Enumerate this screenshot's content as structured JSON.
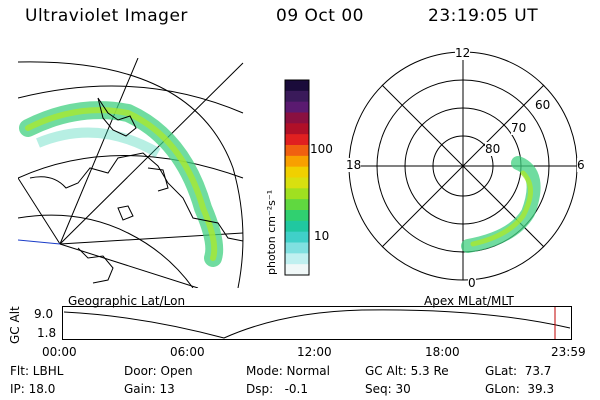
{
  "header": {
    "instrument": "Ultraviolet Imager",
    "date": "09 Oct 00",
    "time": "23:19:05 UT"
  },
  "colorbar": {
    "unit_label": "photon cm⁻²s⁻¹",
    "tick_labels": [
      "100",
      "10"
    ],
    "colors": [
      "#1a0b3a",
      "#3a1a5a",
      "#5a1a70",
      "#8a1040",
      "#b01028",
      "#e02020",
      "#f06010",
      "#f8a000",
      "#f0d000",
      "#d8e010",
      "#a0e020",
      "#60d840",
      "#30d070",
      "#20c8a0",
      "#40d0c8",
      "#80e0e0",
      "#c0f0f0",
      "#f0f8f8"
    ]
  },
  "polar": {
    "mlt_labels": {
      "top": "12",
      "left": "18",
      "right": "6",
      "bottom": "0"
    },
    "lat_labels": [
      "60",
      "70",
      "80"
    ]
  },
  "altitude_plot": {
    "left_title": "Geographic Lat/Lon",
    "right_title": "Apex MLat/MLT",
    "y_axis_label": "GC Alt",
    "y_ticks": [
      "9.0",
      "1.8"
    ],
    "x_ticks": [
      "00:00",
      "06:00",
      "12:00",
      "18:00",
      "23:59"
    ],
    "current_marker_color": "#c00000"
  },
  "status": {
    "filter": "Flt: LBHL",
    "ip": "IP: 18.0",
    "door": "Door: Open",
    "gain": "Gain: 13",
    "mode": "Mode: Normal",
    "dsp": "Dsp:   -0.1",
    "gc_alt": "GC Alt: 5.3 Re",
    "seq": "Seq: 30",
    "glat": "GLat:  73.7",
    "glon": "GLon:  39.3"
  }
}
